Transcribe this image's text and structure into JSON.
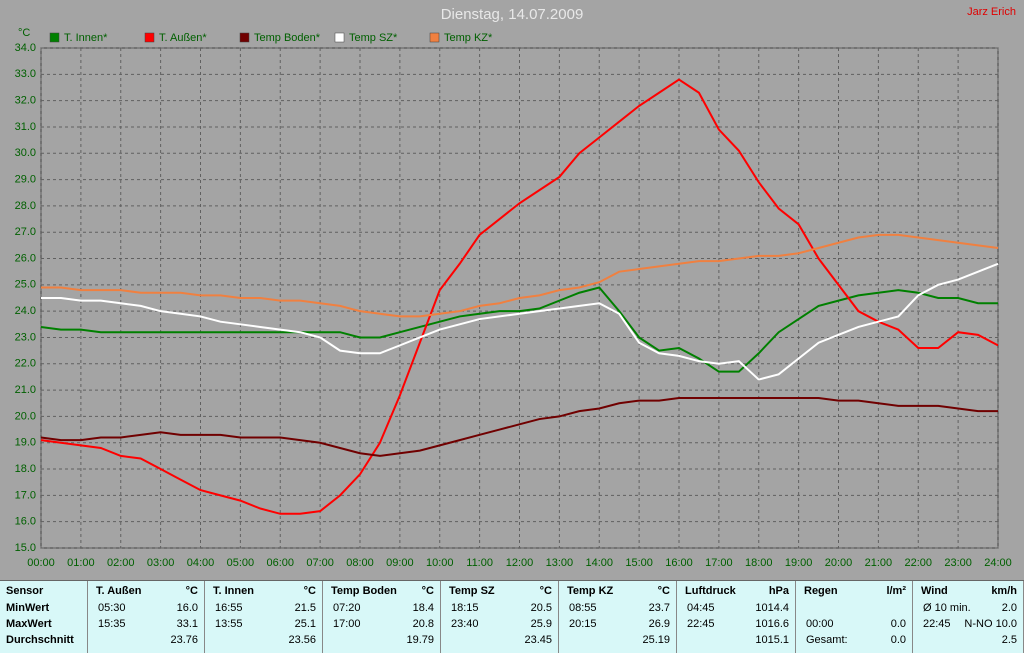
{
  "chart_data": {
    "type": "line",
    "title": "Dienstag, 14.07.2009",
    "author": "Jarz Erich",
    "y_label": "°C",
    "x": [
      0,
      0.5,
      1,
      1.5,
      2,
      2.5,
      3,
      3.5,
      4,
      4.5,
      5,
      5.5,
      6,
      6.5,
      7,
      7.5,
      8,
      8.5,
      9,
      9.5,
      10,
      10.5,
      11,
      11.5,
      12,
      12.5,
      13,
      13.5,
      14,
      14.5,
      15,
      15.5,
      16,
      16.5,
      17,
      17.5,
      18,
      18.5,
      19,
      19.5,
      20,
      20.5,
      21,
      21.5,
      22,
      22.5,
      23,
      23.5,
      24
    ],
    "xlim": [
      0,
      24
    ],
    "xticks": [
      {
        "value": 0,
        "label": "00:00"
      },
      {
        "value": 1,
        "label": "01:00"
      },
      {
        "value": 2,
        "label": "02:00"
      },
      {
        "value": 3,
        "label": "03:00"
      },
      {
        "value": 4,
        "label": "04:00"
      },
      {
        "value": 5,
        "label": "05:00"
      },
      {
        "value": 6,
        "label": "06:00"
      },
      {
        "value": 7,
        "label": "07:00"
      },
      {
        "value": 8,
        "label": "08:00"
      },
      {
        "value": 9,
        "label": "09:00"
      },
      {
        "value": 10,
        "label": "10:00"
      },
      {
        "value": 11,
        "label": "11:00"
      },
      {
        "value": 12,
        "label": "12:00"
      },
      {
        "value": 13,
        "label": "13:00"
      },
      {
        "value": 14,
        "label": "14:00"
      },
      {
        "value": 15,
        "label": "15:00"
      },
      {
        "value": 16,
        "label": "16:00"
      },
      {
        "value": 17,
        "label": "17:00"
      },
      {
        "value": 18,
        "label": "18:00"
      },
      {
        "value": 19,
        "label": "19:00"
      },
      {
        "value": 20,
        "label": "20:00"
      },
      {
        "value": 21,
        "label": "21:00"
      },
      {
        "value": 22,
        "label": "22:00"
      },
      {
        "value": 23,
        "label": "23:00"
      },
      {
        "value": 24,
        "label": "24:00"
      }
    ],
    "ylim": [
      15,
      34
    ],
    "yticks": [
      {
        "value": 15,
        "label": "15.0"
      },
      {
        "value": 16,
        "label": "16.0"
      },
      {
        "value": 17,
        "label": "17.0"
      },
      {
        "value": 18,
        "label": "18.0"
      },
      {
        "value": 19,
        "label": "19.0"
      },
      {
        "value": 20,
        "label": "20.0"
      },
      {
        "value": 21,
        "label": "21.0"
      },
      {
        "value": 22,
        "label": "22.0"
      },
      {
        "value": 23,
        "label": "23.0"
      },
      {
        "value": 24,
        "label": "24.0"
      },
      {
        "value": 25,
        "label": "25.0"
      },
      {
        "value": 26,
        "label": "26.0"
      },
      {
        "value": 27,
        "label": "27.0"
      },
      {
        "value": 28,
        "label": "28.0"
      },
      {
        "value": 29,
        "label": "29.0"
      },
      {
        "value": 30,
        "label": "30.0"
      },
      {
        "value": 31,
        "label": "31.0"
      },
      {
        "value": 32,
        "label": "32.0"
      },
      {
        "value": 33,
        "label": "33.0"
      },
      {
        "value": 34,
        "label": "34.0"
      }
    ],
    "grid": true,
    "series": [
      {
        "name": "T. Innen*",
        "color": "#008000",
        "values": [
          23.4,
          23.3,
          23.3,
          23.2,
          23.2,
          23.2,
          23.2,
          23.2,
          23.2,
          23.2,
          23.2,
          23.2,
          23.2,
          23.2,
          23.2,
          23.2,
          23.0,
          23.0,
          23.2,
          23.4,
          23.6,
          23.8,
          23.9,
          24.0,
          24.0,
          24.1,
          24.4,
          24.7,
          24.9,
          24.0,
          23.0,
          22.5,
          22.6,
          22.2,
          21.7,
          21.7,
          22.4,
          23.2,
          23.7,
          24.2,
          24.4,
          24.6,
          24.7,
          24.8,
          24.7,
          24.5,
          24.5,
          24.3,
          24.3
        ]
      },
      {
        "name": "T. Außen*",
        "color": "#ff0000",
        "values": [
          19.1,
          19.0,
          18.9,
          18.8,
          18.5,
          18.4,
          18.0,
          17.6,
          17.2,
          17.0,
          16.8,
          16.5,
          16.3,
          16.3,
          16.4,
          17.0,
          17.8,
          19.0,
          20.8,
          22.8,
          24.8,
          25.8,
          26.9,
          27.5,
          28.1,
          28.6,
          29.1,
          30.0,
          30.6,
          31.2,
          31.8,
          32.3,
          32.8,
          32.3,
          30.9,
          30.1,
          28.9,
          27.9,
          27.3,
          26.0,
          25.0,
          24.0,
          23.6,
          23.3,
          22.6,
          22.6,
          23.2,
          23.1,
          22.7
        ]
      },
      {
        "name": "Temp Boden*",
        "color": "#700000",
        "values": [
          19.2,
          19.1,
          19.1,
          19.2,
          19.2,
          19.3,
          19.4,
          19.3,
          19.3,
          19.3,
          19.2,
          19.2,
          19.2,
          19.1,
          19.0,
          18.8,
          18.6,
          18.5,
          18.6,
          18.7,
          18.9,
          19.1,
          19.3,
          19.5,
          19.7,
          19.9,
          20.0,
          20.2,
          20.3,
          20.5,
          20.6,
          20.6,
          20.7,
          20.7,
          20.7,
          20.7,
          20.7,
          20.7,
          20.7,
          20.7,
          20.6,
          20.6,
          20.5,
          20.4,
          20.4,
          20.4,
          20.3,
          20.2,
          20.2
        ]
      },
      {
        "name": "Temp SZ*",
        "color": "#ffffff",
        "values": [
          24.5,
          24.5,
          24.4,
          24.4,
          24.3,
          24.2,
          24.0,
          23.9,
          23.8,
          23.6,
          23.5,
          23.4,
          23.3,
          23.2,
          23.0,
          22.5,
          22.4,
          22.4,
          22.7,
          23.0,
          23.3,
          23.5,
          23.7,
          23.8,
          23.9,
          24.0,
          24.1,
          24.2,
          24.3,
          23.9,
          22.8,
          22.4,
          22.3,
          22.1,
          22.0,
          22.1,
          21.4,
          21.6,
          22.2,
          22.8,
          23.1,
          23.4,
          23.6,
          23.8,
          24.6,
          25.0,
          25.2,
          25.5,
          25.8
        ]
      },
      {
        "name": "Temp KZ*",
        "color": "#f08040",
        "values": [
          24.9,
          24.9,
          24.8,
          24.8,
          24.8,
          24.7,
          24.7,
          24.7,
          24.6,
          24.6,
          24.5,
          24.5,
          24.4,
          24.4,
          24.3,
          24.2,
          24.0,
          23.9,
          23.8,
          23.8,
          23.9,
          24.0,
          24.2,
          24.3,
          24.5,
          24.6,
          24.8,
          24.9,
          25.1,
          25.5,
          25.6,
          25.7,
          25.8,
          25.9,
          25.9,
          26.0,
          26.1,
          26.1,
          26.2,
          26.4,
          26.6,
          26.8,
          26.9,
          26.9,
          26.8,
          26.7,
          26.6,
          26.5,
          26.4
        ]
      }
    ]
  },
  "table": {
    "row_labels": [
      "Sensor",
      "MinWert",
      "MaxWert",
      "Durchschnitt"
    ],
    "columns": [
      {
        "name": "T. Außen",
        "unit": "°C",
        "rows": [
          [
            "05:30",
            "16.0"
          ],
          [
            "15:35",
            "33.1"
          ],
          [
            null,
            "23.76"
          ]
        ]
      },
      {
        "name": "T. Innen",
        "unit": "°C",
        "rows": [
          [
            "16:55",
            "21.5"
          ],
          [
            "13:55",
            "25.1"
          ],
          [
            null,
            "23.56"
          ]
        ]
      },
      {
        "name": "Temp Boden",
        "unit": "°C",
        "rows": [
          [
            "07:20",
            "18.4"
          ],
          [
            "17:00",
            "20.8"
          ],
          [
            null,
            "19.79"
          ]
        ]
      },
      {
        "name": "Temp SZ",
        "unit": "°C",
        "rows": [
          [
            "18:15",
            "20.5"
          ],
          [
            "23:40",
            "25.9"
          ],
          [
            null,
            "23.45"
          ]
        ]
      },
      {
        "name": "Temp KZ",
        "unit": "°C",
        "rows": [
          [
            "08:55",
            "23.7"
          ],
          [
            "20:15",
            "26.9"
          ],
          [
            null,
            "25.19"
          ]
        ]
      },
      {
        "name": "Luftdruck",
        "unit": "hPa",
        "rows": [
          [
            "04:45",
            "1014.4"
          ],
          [
            "22:45",
            "1016.6"
          ],
          [
            null,
            "1015.1"
          ]
        ]
      },
      {
        "name": "Regen",
        "unit": "l/m²",
        "rows": [
          [
            null,
            null
          ],
          [
            "00:00",
            "0.0"
          ],
          [
            "Gesamt:",
            "0.0"
          ]
        ]
      },
      {
        "name": "Wind",
        "unit": "km/h",
        "rows": [
          [
            "Ø 10 min.",
            "2.0"
          ],
          [
            "22:45",
            "N-NO 10.0"
          ],
          [
            null,
            "2.5"
          ]
        ]
      }
    ]
  }
}
